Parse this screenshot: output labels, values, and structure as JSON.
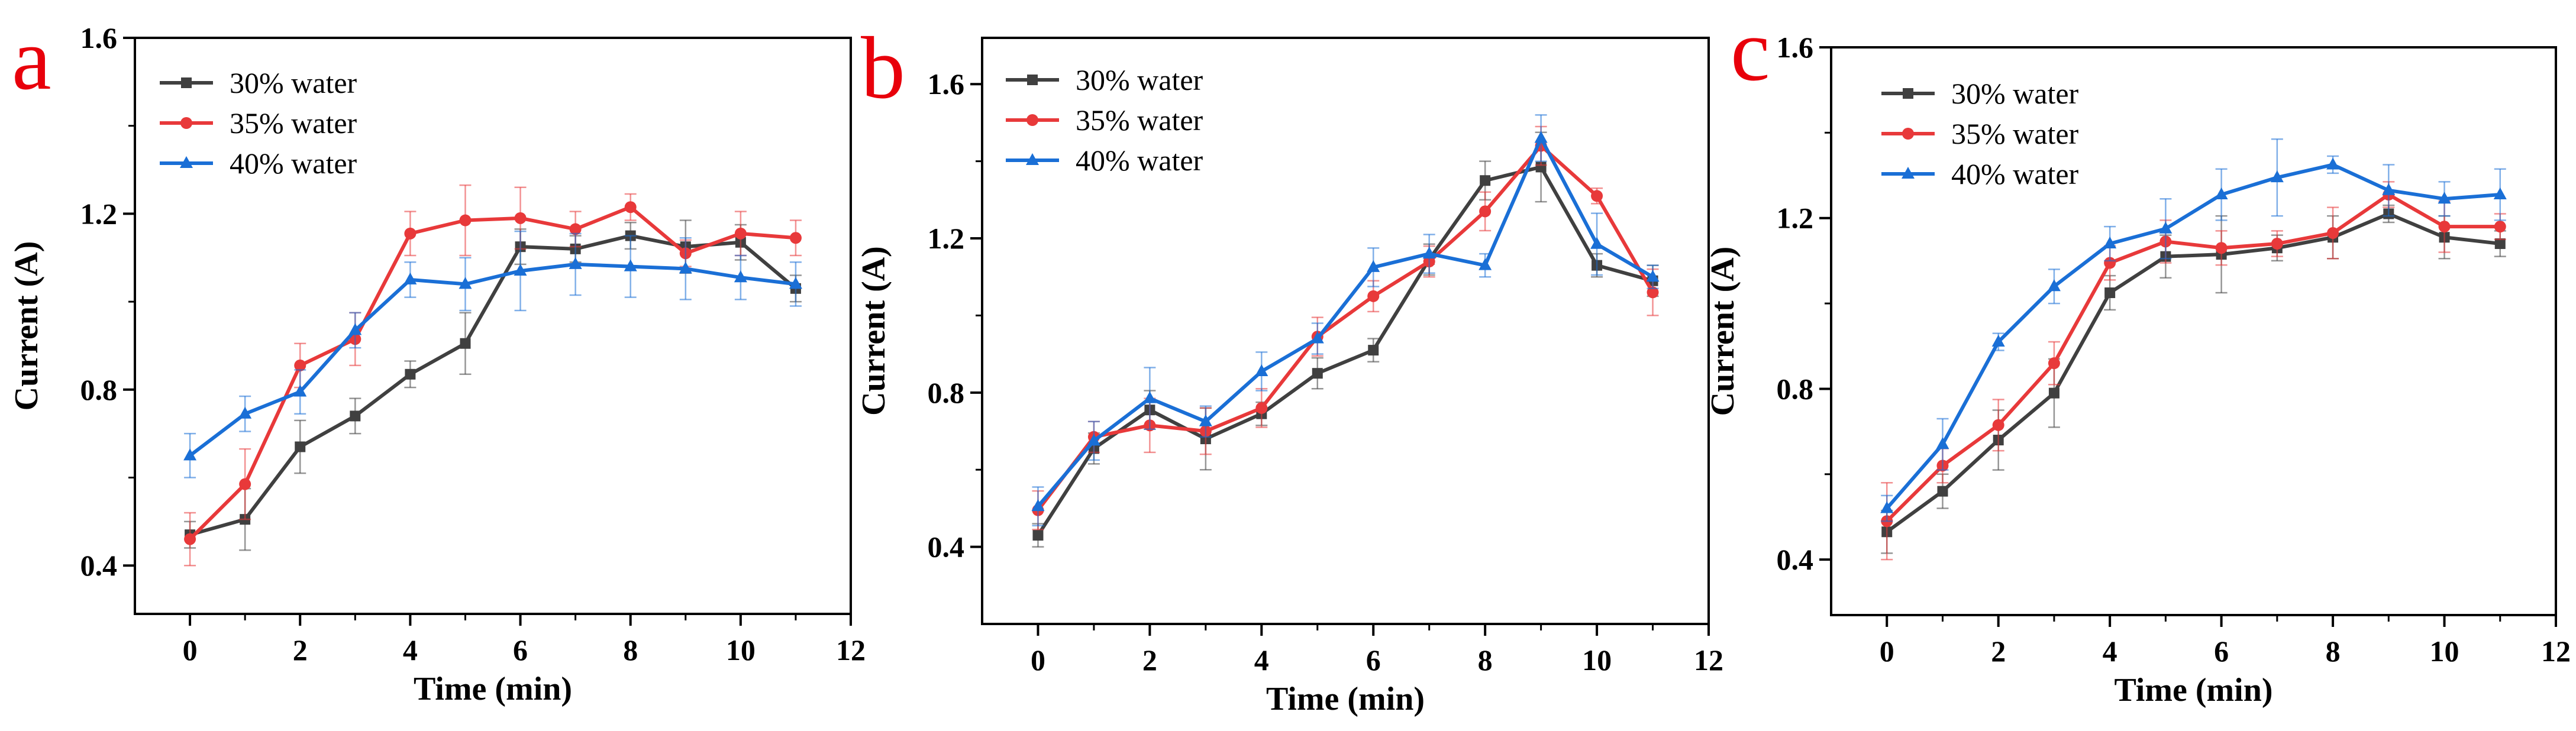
{
  "chart_data": [
    {
      "type": "line",
      "panel_label": "a",
      "xlabel": "Time (min)",
      "ylabel": "Current (A)",
      "xlim": [
        -1,
        12
      ],
      "ylim": [
        0.29,
        1.6
      ],
      "xticks": [
        0,
        2,
        4,
        6,
        8,
        10,
        12
      ],
      "yticks": [
        0.4,
        0.8,
        1.2,
        1.6
      ],
      "tick_labels_x": [
        "0",
        "2",
        "4",
        "6",
        "8",
        "10",
        "12"
      ],
      "tick_labels_y": [
        "0.4",
        "0.8",
        "1.2",
        "1.6"
      ],
      "x": [
        0,
        1,
        2,
        3,
        4,
        5,
        6,
        7,
        8,
        9,
        10,
        11
      ],
      "legend_position": "top-left",
      "series": [
        {
          "name": "30% water",
          "color": "#404040",
          "marker": "square",
          "values": [
            0.47,
            0.505,
            0.67,
            0.74,
            0.835,
            0.905,
            1.125,
            1.12,
            1.15,
            1.125,
            1.135,
            1.03
          ],
          "errors": [
            0.03,
            0.07,
            0.06,
            0.04,
            0.03,
            0.07,
            0.04,
            0.03,
            0.03,
            0.06,
            0.04,
            0.03
          ]
        },
        {
          "name": "35% water",
          "color": "#E8393A",
          "marker": "circle",
          "values": [
            0.46,
            0.585,
            0.855,
            0.915,
            1.155,
            1.185,
            1.19,
            1.165,
            1.215,
            1.11,
            1.155,
            1.145
          ],
          "errors": [
            0.06,
            0.08,
            0.05,
            0.06,
            0.05,
            0.08,
            0.07,
            0.04,
            0.03,
            0.03,
            0.05,
            0.04
          ]
        },
        {
          "name": "40% water",
          "color": "#1A6FD6",
          "marker": "triangle",
          "values": [
            0.65,
            0.745,
            0.795,
            0.935,
            1.05,
            1.04,
            1.07,
            1.085,
            1.08,
            1.075,
            1.055,
            1.04
          ],
          "errors": [
            0.05,
            0.04,
            0.05,
            0.04,
            0.04,
            0.06,
            0.09,
            0.07,
            0.07,
            0.07,
            0.05,
            0.05
          ]
        }
      ]
    },
    {
      "type": "line",
      "panel_label": "b",
      "xlabel": "Time (min)",
      "ylabel": "Current (A)",
      "xlim": [
        -1,
        12
      ],
      "ylim": [
        0.2,
        1.72
      ],
      "xticks": [
        0,
        2,
        4,
        6,
        8,
        10,
        12
      ],
      "yticks": [
        0.4,
        0.8,
        1.2,
        1.6
      ],
      "tick_labels_x": [
        "0",
        "2",
        "4",
        "6",
        "8",
        "10",
        "12"
      ],
      "tick_labels_y": [
        "0.4",
        "0.8",
        "1.2",
        "1.6"
      ],
      "x": [
        0,
        1,
        2,
        3,
        4,
        5,
        6,
        7,
        8,
        9,
        10,
        11
      ],
      "legend_position": "top-left",
      "series": [
        {
          "name": "30% water",
          "color": "#404040",
          "marker": "square",
          "values": [
            0.43,
            0.655,
            0.755,
            0.68,
            0.745,
            0.85,
            0.91,
            1.145,
            1.35,
            1.385,
            1.13,
            1.09
          ],
          "errors": [
            0.03,
            0.04,
            0.05,
            0.08,
            0.03,
            0.04,
            0.03,
            0.04,
            0.05,
            0.09,
            0.03,
            0.04
          ]
        },
        {
          "name": "35% water",
          "color": "#E8393A",
          "marker": "circle",
          "values": [
            0.495,
            0.685,
            0.715,
            0.7,
            0.76,
            0.945,
            1.05,
            1.14,
            1.27,
            1.44,
            1.31,
            1.06
          ],
          "errors": [
            0.05,
            0.04,
            0.07,
            0.06,
            0.05,
            0.05,
            0.04,
            0.04,
            0.05,
            0.05,
            0.02,
            0.06
          ]
        },
        {
          "name": "40% water",
          "color": "#1A6FD6",
          "marker": "triangle",
          "values": [
            0.505,
            0.675,
            0.785,
            0.725,
            0.855,
            0.94,
            1.125,
            1.16,
            1.13,
            1.46,
            1.185,
            1.1
          ],
          "errors": [
            0.05,
            0.05,
            0.08,
            0.04,
            0.05,
            0.04,
            0.05,
            0.05,
            0.03,
            0.06,
            0.08,
            0.03
          ]
        }
      ]
    },
    {
      "type": "line",
      "panel_label": "c",
      "xlabel": "Time (min)",
      "ylabel": "Current (A)",
      "xlim": [
        -1,
        12
      ],
      "ylim": [
        0.27,
        1.6
      ],
      "xticks": [
        0,
        2,
        4,
        6,
        8,
        10,
        12
      ],
      "yticks": [
        0.4,
        0.8,
        1.2,
        1.6
      ],
      "tick_labels_x": [
        "0",
        "2",
        "4",
        "6",
        "8",
        "10",
        "12"
      ],
      "tick_labels_y": [
        "0.4",
        "0.8",
        "1.2",
        "1.6"
      ],
      "x": [
        0,
        1,
        2,
        3,
        4,
        5,
        6,
        7,
        8,
        9,
        10,
        11
      ],
      "legend_position": "top-left",
      "series": [
        {
          "name": "30% water",
          "color": "#404040",
          "marker": "square",
          "values": [
            0.465,
            0.56,
            0.68,
            0.79,
            1.025,
            1.11,
            1.115,
            1.13,
            1.155,
            1.21,
            1.155,
            1.14
          ],
          "errors": [
            0.05,
            0.04,
            0.07,
            0.08,
            0.04,
            0.05,
            0.09,
            0.03,
            0.05,
            0.02,
            0.05,
            0.03
          ]
        },
        {
          "name": "35% water",
          "color": "#E8393A",
          "marker": "circle",
          "values": [
            0.49,
            0.62,
            0.715,
            0.86,
            1.095,
            1.145,
            1.13,
            1.14,
            1.165,
            1.255,
            1.18,
            1.18
          ],
          "errors": [
            0.09,
            0.04,
            0.06,
            0.05,
            0.04,
            0.05,
            0.04,
            0.03,
            0.06,
            0.03,
            0.06,
            0.03
          ]
        },
        {
          "name": "40% water",
          "color": "#1A6FD6",
          "marker": "triangle",
          "values": [
            0.52,
            0.67,
            0.91,
            1.04,
            1.14,
            1.175,
            1.255,
            1.295,
            1.325,
            1.265,
            1.245,
            1.255
          ],
          "errors": [
            0.03,
            0.06,
            0.02,
            0.04,
            0.04,
            0.07,
            0.06,
            0.09,
            0.02,
            0.06,
            0.04,
            0.06
          ]
        }
      ]
    }
  ],
  "styles": {
    "panel_letter_color": "#E8000B",
    "axis_color": "#000000"
  }
}
